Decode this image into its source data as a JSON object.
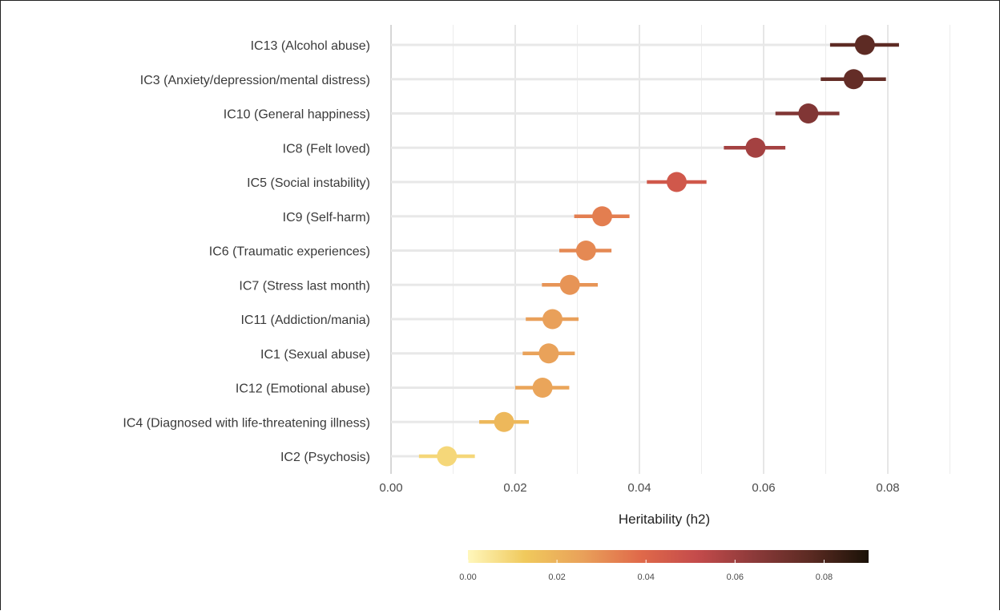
{
  "chart_data": {
    "type": "forest",
    "xlabel": "Heritability (h2)",
    "xlim": [
      0,
      0.09
    ],
    "xticks": [
      0.0,
      0.02,
      0.04,
      0.06,
      0.08
    ],
    "xtick_labels": [
      "0.00",
      "0.02",
      "0.04",
      "0.06",
      "0.08"
    ],
    "grid": true,
    "legend_position": "bottom",
    "colorbar_ticks": [
      "0.00",
      "0.02",
      "0.04",
      "0.06",
      "0.08"
    ],
    "colorbar_range": [
      0,
      0.09
    ],
    "colorbar_colors": [
      "#fff7bc",
      "#f0c95c",
      "#e9a15a",
      "#e06a4a",
      "#c44b4b",
      "#8c3a3a",
      "#5a2a22",
      "#1a1207"
    ],
    "items": [
      {
        "label": "IC13 (Alcohol abuse)",
        "estimate": 0.0763,
        "lower": 0.0707,
        "upper": 0.0818
      },
      {
        "label": "IC3 (Anxiety/depression/mental distress)",
        "estimate": 0.0745,
        "lower": 0.0692,
        "upper": 0.0797
      },
      {
        "label": "IC10 (General happiness)",
        "estimate": 0.0672,
        "lower": 0.0619,
        "upper": 0.0722
      },
      {
        "label": "IC8 (Felt loved)",
        "estimate": 0.0587,
        "lower": 0.0536,
        "upper": 0.0635
      },
      {
        "label": "IC5 (Social instability)",
        "estimate": 0.046,
        "lower": 0.0412,
        "upper": 0.0508
      },
      {
        "label": "IC9 (Self-harm)",
        "estimate": 0.034,
        "lower": 0.0295,
        "upper": 0.0384
      },
      {
        "label": "IC6 (Traumatic experiences)",
        "estimate": 0.0314,
        "lower": 0.0271,
        "upper": 0.0355
      },
      {
        "label": "IC7 (Stress last month)",
        "estimate": 0.0288,
        "lower": 0.0243,
        "upper": 0.0333
      },
      {
        "label": "IC11 (Addiction/mania)",
        "estimate": 0.026,
        "lower": 0.0217,
        "upper": 0.0302
      },
      {
        "label": "IC1 (Sexual abuse)",
        "estimate": 0.0254,
        "lower": 0.0212,
        "upper": 0.0296
      },
      {
        "label": "IC12 (Emotional abuse)",
        "estimate": 0.0244,
        "lower": 0.02,
        "upper": 0.0287
      },
      {
        "label": "IC4 (Diagnosed with life-threatening illness)",
        "estimate": 0.0182,
        "lower": 0.0142,
        "upper": 0.0222
      },
      {
        "label": "IC2 (Psychosis)",
        "estimate": 0.009,
        "lower": 0.0045,
        "upper": 0.0135
      }
    ]
  }
}
